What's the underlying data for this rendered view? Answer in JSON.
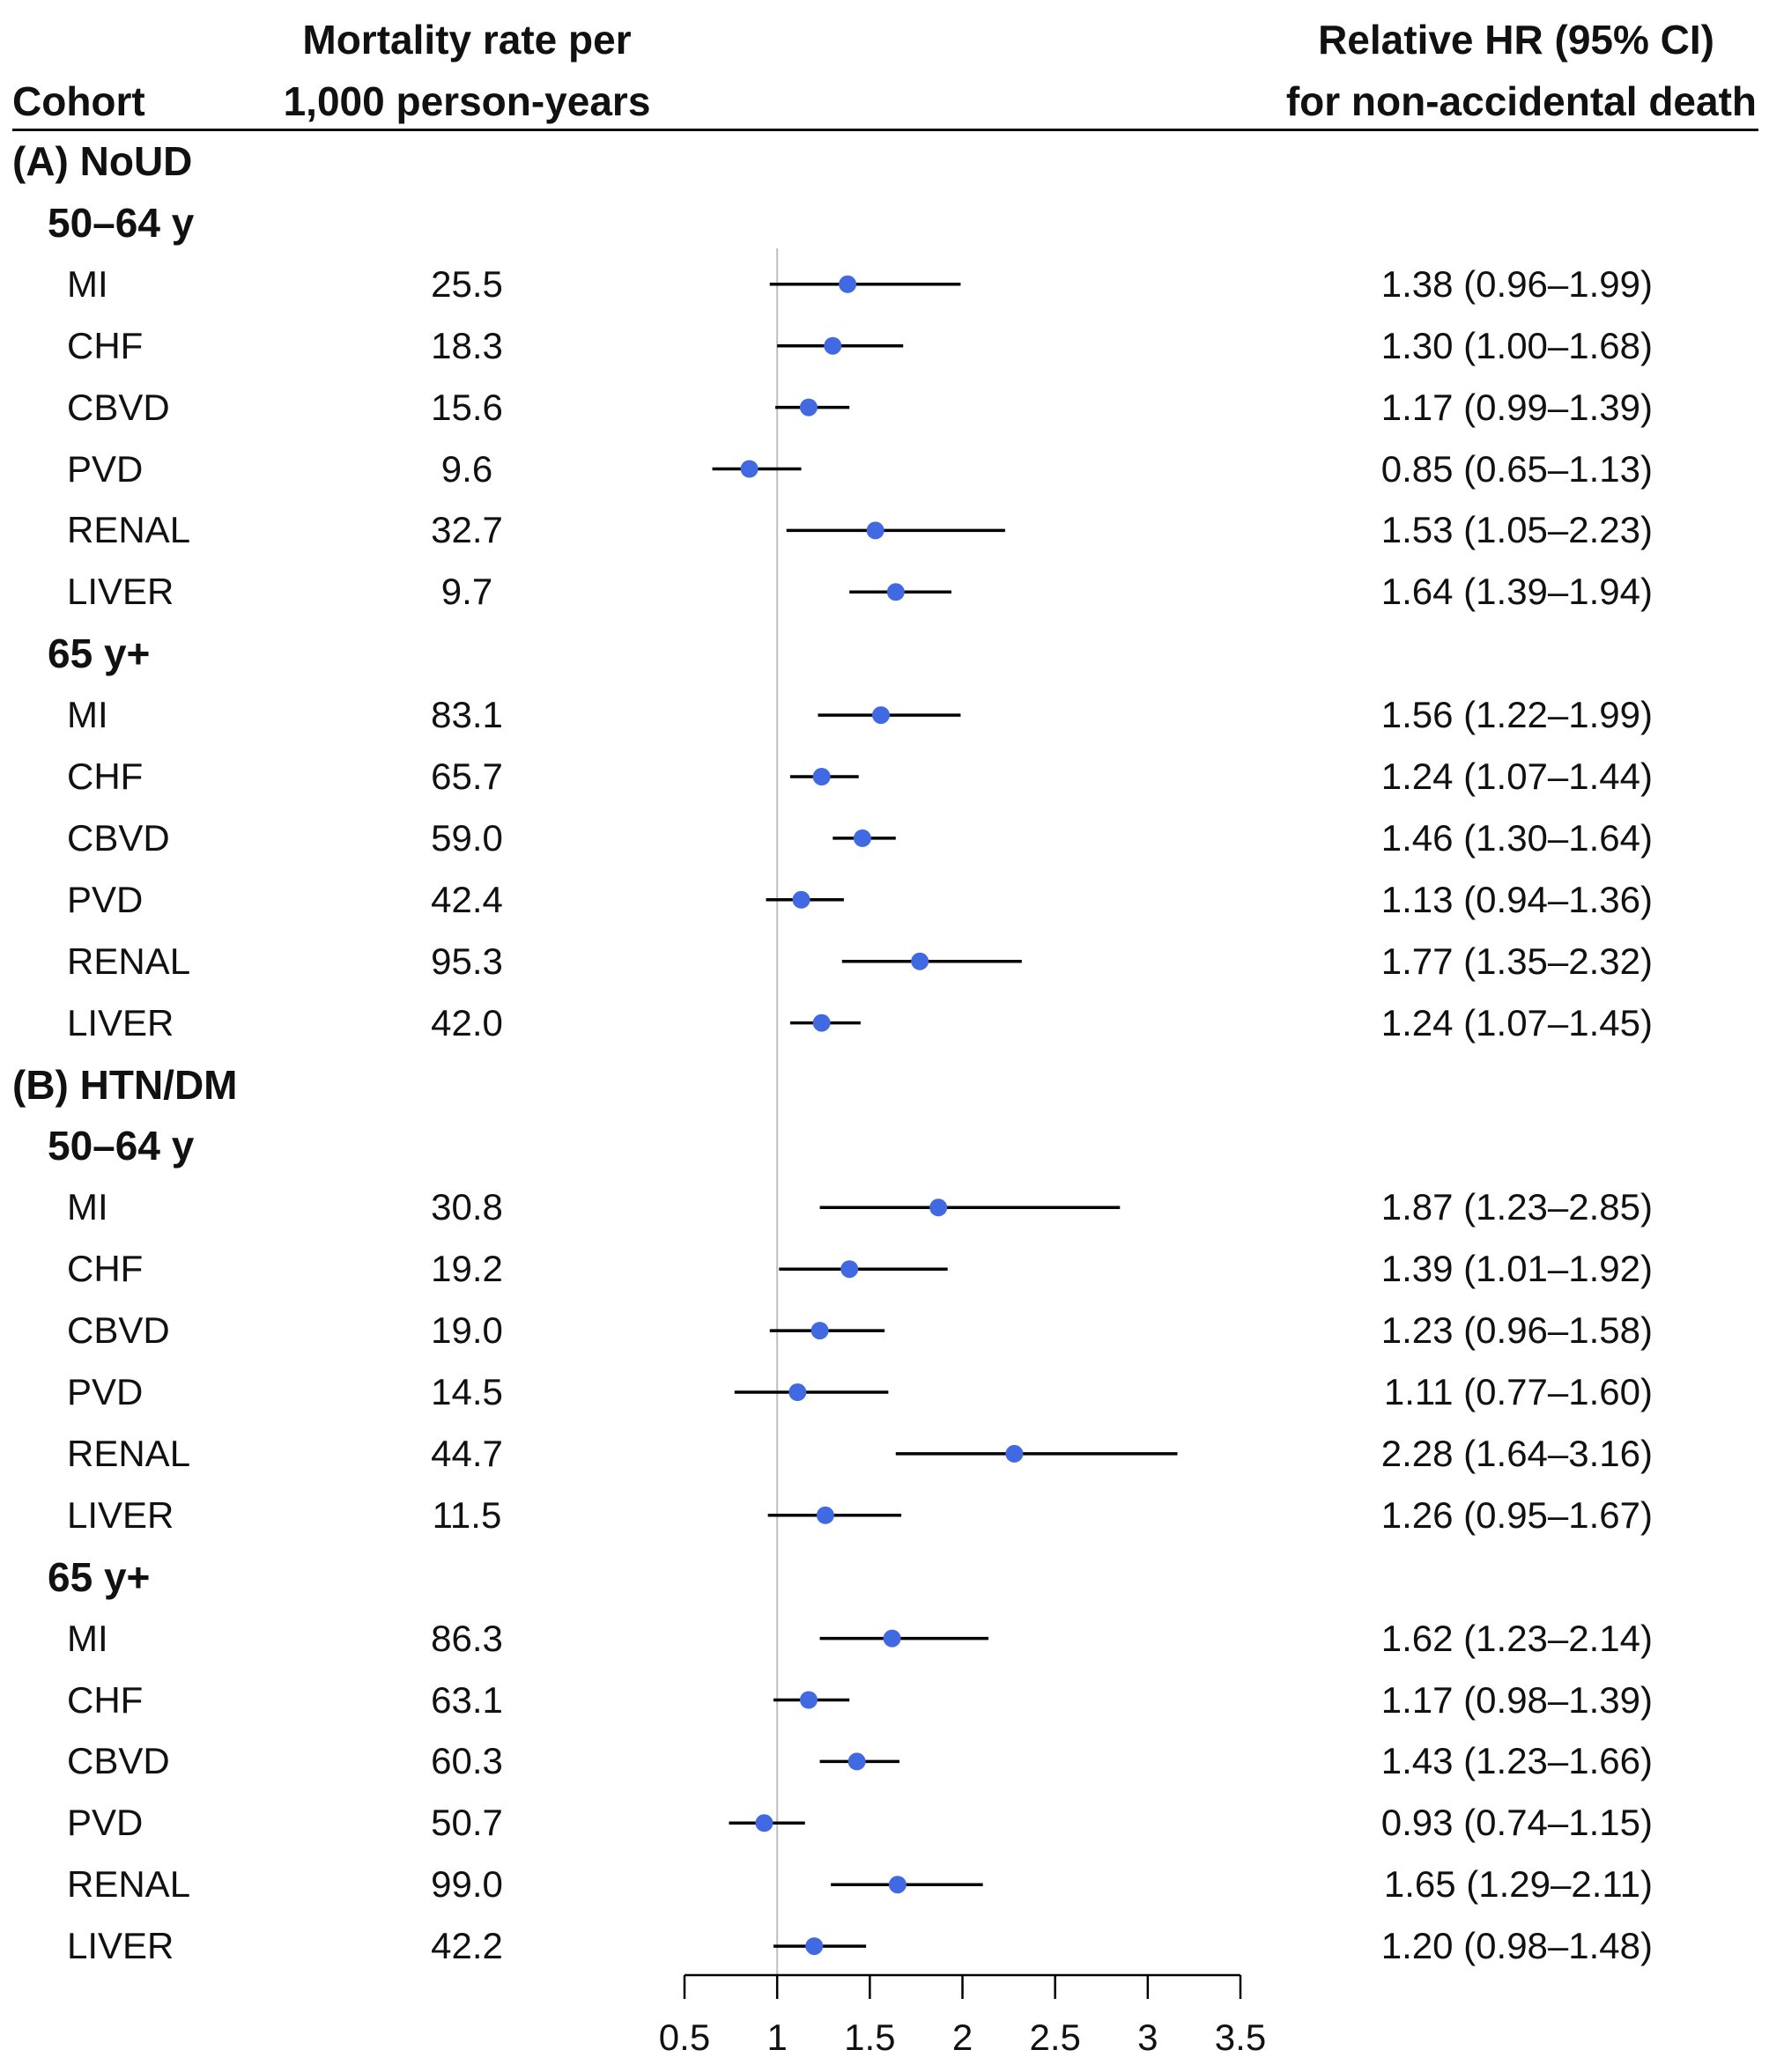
{
  "headers": {
    "cohort": "Cohort",
    "rate_line1": "Mortality rate per",
    "rate_line2": "1,000 person-years",
    "hr_line1": "Relative HR (95% CI)",
    "hr_line2": "for non-accidental death"
  },
  "colors": {
    "point": "#4169E1",
    "ci_line": "#000000",
    "reference_line": "#c0c0c0",
    "axis": "#000000"
  },
  "chart_data": {
    "type": "forest",
    "xlabel": "",
    "xlim": [
      0.5,
      3.5
    ],
    "x_ticks": [
      "0.5",
      "1",
      "1.5",
      "2",
      "2.5",
      "3",
      "3.5"
    ],
    "reference_value": 1,
    "rows": [
      {
        "kind": "section",
        "label": "(A) NoUD"
      },
      {
        "kind": "subgroup",
        "label": "50–64 y"
      },
      {
        "kind": "data",
        "label": "MI",
        "rate": "25.5",
        "hr": 1.38,
        "lo": 0.96,
        "hi": 1.99,
        "hr_text": "1.38 (0.96–1.99)"
      },
      {
        "kind": "data",
        "label": "CHF",
        "rate": "18.3",
        "hr": 1.3,
        "lo": 1.0,
        "hi": 1.68,
        "hr_text": "1.30 (1.00–1.68)"
      },
      {
        "kind": "data",
        "label": "CBVD",
        "rate": "15.6",
        "hr": 1.17,
        "lo": 0.99,
        "hi": 1.39,
        "hr_text": "1.17 (0.99–1.39)"
      },
      {
        "kind": "data",
        "label": "PVD",
        "rate": "9.6",
        "hr": 0.85,
        "lo": 0.65,
        "hi": 1.13,
        "hr_text": "0.85 (0.65–1.13)"
      },
      {
        "kind": "data",
        "label": "RENAL",
        "rate": "32.7",
        "hr": 1.53,
        "lo": 1.05,
        "hi": 2.23,
        "hr_text": "1.53 (1.05–2.23)"
      },
      {
        "kind": "data",
        "label": "LIVER",
        "rate": "9.7",
        "hr": 1.64,
        "lo": 1.39,
        "hi": 1.94,
        "hr_text": "1.64 (1.39–1.94)"
      },
      {
        "kind": "subgroup",
        "label": "65 y+"
      },
      {
        "kind": "data",
        "label": "MI",
        "rate": "83.1",
        "hr": 1.56,
        "lo": 1.22,
        "hi": 1.99,
        "hr_text": "1.56 (1.22–1.99)"
      },
      {
        "kind": "data",
        "label": "CHF",
        "rate": "65.7",
        "hr": 1.24,
        "lo": 1.07,
        "hi": 1.44,
        "hr_text": "1.24 (1.07–1.44)"
      },
      {
        "kind": "data",
        "label": "CBVD",
        "rate": "59.0",
        "hr": 1.46,
        "lo": 1.3,
        "hi": 1.64,
        "hr_text": "1.46 (1.30–1.64)"
      },
      {
        "kind": "data",
        "label": "PVD",
        "rate": "42.4",
        "hr": 1.13,
        "lo": 0.94,
        "hi": 1.36,
        "hr_text": "1.13 (0.94–1.36)"
      },
      {
        "kind": "data",
        "label": "RENAL",
        "rate": "95.3",
        "hr": 1.77,
        "lo": 1.35,
        "hi": 2.32,
        "hr_text": "1.77 (1.35–2.32)"
      },
      {
        "kind": "data",
        "label": "LIVER",
        "rate": "42.0",
        "hr": 1.24,
        "lo": 1.07,
        "hi": 1.45,
        "hr_text": "1.24 (1.07–1.45)"
      },
      {
        "kind": "section",
        "label": "(B) HTN/DM"
      },
      {
        "kind": "subgroup",
        "label": "50–64 y"
      },
      {
        "kind": "data",
        "label": "MI",
        "rate": "30.8",
        "hr": 1.87,
        "lo": 1.23,
        "hi": 2.85,
        "hr_text": "1.87 (1.23–2.85)"
      },
      {
        "kind": "data",
        "label": "CHF",
        "rate": "19.2",
        "hr": 1.39,
        "lo": 1.01,
        "hi": 1.92,
        "hr_text": "1.39 (1.01–1.92)"
      },
      {
        "kind": "data",
        "label": "CBVD",
        "rate": "19.0",
        "hr": 1.23,
        "lo": 0.96,
        "hi": 1.58,
        "hr_text": "1.23 (0.96–1.58)"
      },
      {
        "kind": "data",
        "label": "PVD",
        "rate": "14.5",
        "hr": 1.11,
        "lo": 0.77,
        "hi": 1.6,
        "hr_text": "1.11 (0.77–1.60)"
      },
      {
        "kind": "data",
        "label": "RENAL",
        "rate": "44.7",
        "hr": 2.28,
        "lo": 1.64,
        "hi": 3.16,
        "hr_text": "2.28 (1.64–3.16)"
      },
      {
        "kind": "data",
        "label": "LIVER",
        "rate": "11.5",
        "hr": 1.26,
        "lo": 0.95,
        "hi": 1.67,
        "hr_text": "1.26 (0.95–1.67)"
      },
      {
        "kind": "subgroup",
        "label": "65 y+"
      },
      {
        "kind": "data",
        "label": "MI",
        "rate": "86.3",
        "hr": 1.62,
        "lo": 1.23,
        "hi": 2.14,
        "hr_text": "1.62 (1.23–2.14)"
      },
      {
        "kind": "data",
        "label": "CHF",
        "rate": "63.1",
        "hr": 1.17,
        "lo": 0.98,
        "hi": 1.39,
        "hr_text": "1.17 (0.98–1.39)"
      },
      {
        "kind": "data",
        "label": "CBVD",
        "rate": "60.3",
        "hr": 1.43,
        "lo": 1.23,
        "hi": 1.66,
        "hr_text": "1.43 (1.23–1.66)"
      },
      {
        "kind": "data",
        "label": "PVD",
        "rate": "50.7",
        "hr": 0.93,
        "lo": 0.74,
        "hi": 1.15,
        "hr_text": "0.93 (0.74–1.15)"
      },
      {
        "kind": "data",
        "label": "RENAL",
        "rate": "99.0",
        "hr": 1.65,
        "lo": 1.29,
        "hi": 2.11,
        "hr_text": "1.65 (1.29–2.11)"
      },
      {
        "kind": "data",
        "label": "LIVER",
        "rate": "42.2",
        "hr": 1.2,
        "lo": 0.98,
        "hi": 1.48,
        "hr_text": "1.20 (0.98–1.48)"
      }
    ]
  }
}
